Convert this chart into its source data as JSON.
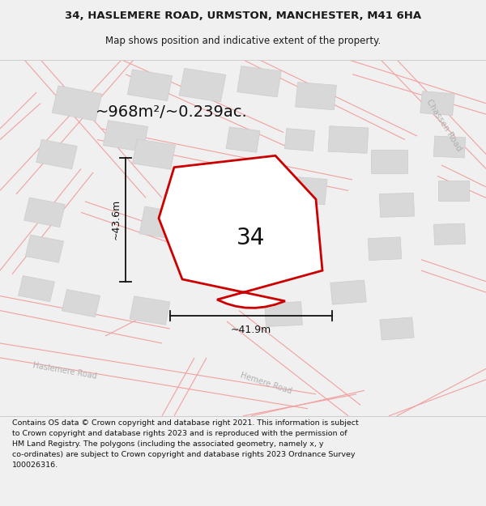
{
  "title_line1": "34, HASLEMERE ROAD, URMSTON, MANCHESTER, M41 6HA",
  "title_line2": "Map shows position and indicative extent of the property.",
  "area_label": "~968m²/~0.239ac.",
  "width_label": "~41.9m",
  "height_label": "~43.6m",
  "plot_number": "34",
  "footer_text": "Contains OS data © Crown copyright and database right 2021. This information is subject to Crown copyright and database rights 2023 and is reproduced with the permission of HM Land Registry. The polygons (including the associated geometry, namely x, y co-ordinates) are subject to Crown copyright and database rights 2023 Ordnance Survey 100026316.",
  "page_bg": "#f0f0f0",
  "map_bg": "#ffffff",
  "road_color": "#f2a0a0",
  "road_lw": 0.8,
  "building_color": "#d8d8d8",
  "building_edge": "#cccccc",
  "plot_edge": "#cc0000",
  "plot_fill": "#ffffff",
  "text_color": "#1a1a1a",
  "dim_color": "#111111",
  "road_label_color": "#b0b0b0",
  "title_fontsize": 9.5,
  "subtitle_fontsize": 8.5,
  "area_fontsize": 14,
  "dim_fontsize": 9,
  "plot_num_fontsize": 20,
  "road_label_fontsize": 7,
  "footer_fontsize": 6.8
}
